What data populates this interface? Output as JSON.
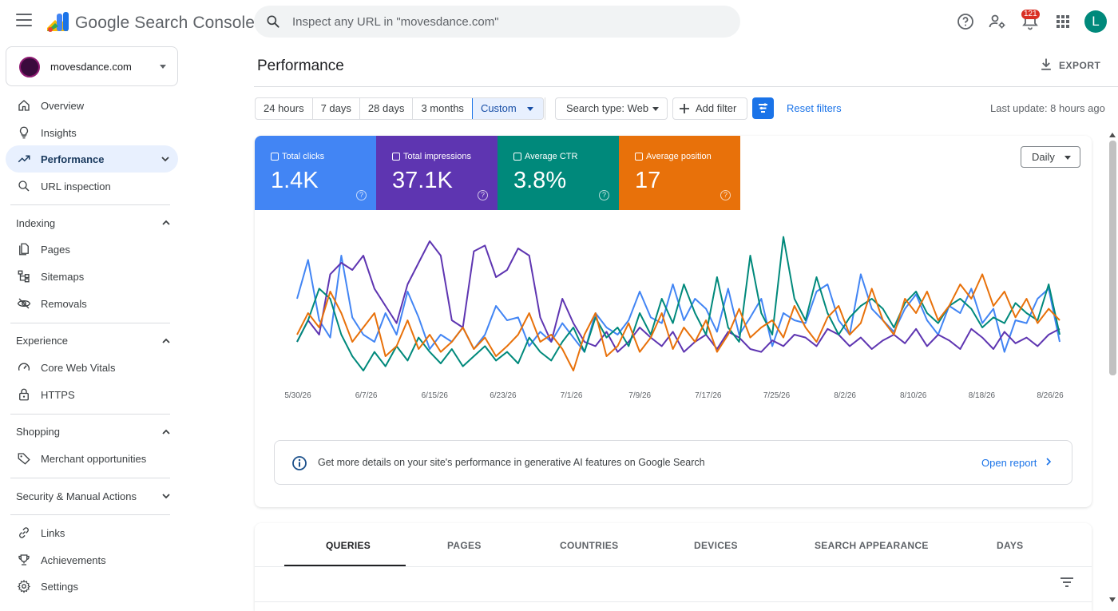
{
  "app": {
    "title": "Google Search Console"
  },
  "search": {
    "placeholder": "Inspect any URL in \"movesdance.com\""
  },
  "header": {
    "notifications_count": "121",
    "avatar_letter": "L"
  },
  "property": {
    "name": "movesdance.com"
  },
  "sidebar": {
    "items": [
      {
        "label": "Overview",
        "icon": "home-icon"
      },
      {
        "label": "Insights",
        "icon": "lightbulb-icon"
      },
      {
        "label": "Performance",
        "icon": "trending-up-icon",
        "active": true
      },
      {
        "label": "URL inspection",
        "icon": "search-icon"
      }
    ],
    "sections": {
      "indexing": {
        "title": "Indexing",
        "items": [
          {
            "label": "Pages"
          },
          {
            "label": "Sitemaps"
          },
          {
            "label": "Removals"
          }
        ]
      },
      "experience": {
        "title": "Experience",
        "items": [
          {
            "label": "Core Web Vitals"
          },
          {
            "label": "HTTPS"
          }
        ]
      },
      "shopping": {
        "title": "Shopping",
        "items": [
          {
            "label": "Merchant opportunities"
          }
        ]
      },
      "security": {
        "title": "Security & Manual Actions"
      },
      "other": {
        "items": [
          {
            "label": "Links"
          },
          {
            "label": "Achievements"
          },
          {
            "label": "Settings"
          }
        ]
      }
    }
  },
  "main": {
    "title": "Performance",
    "export_label": "EXPORT"
  },
  "toolbar": {
    "ranges": [
      "24 hours",
      "7 days",
      "28 days",
      "3 months",
      "Custom"
    ],
    "selected_range": "Custom",
    "search_type": "Search type: Web",
    "add_filter": "Add filter",
    "reset_filters": "Reset filters",
    "last_update": "Last update: 8 hours ago"
  },
  "metrics": [
    {
      "label": "Total clicks",
      "value": "1.4K",
      "color": "#4285f4"
    },
    {
      "label": "Total impressions",
      "value": "37.1K",
      "color": "#5e35b1"
    },
    {
      "label": "Average CTR",
      "value": "3.8%",
      "color": "#00897b"
    },
    {
      "label": "Average position",
      "value": "17",
      "color": "#e8710a"
    }
  ],
  "granularity": "Daily",
  "chart_data": {
    "type": "line",
    "x_ticks": [
      "5/30/26",
      "6/7/26",
      "6/15/26",
      "6/23/26",
      "7/1/26",
      "7/9/26",
      "7/17/26",
      "7/25/26",
      "8/2/26",
      "8/10/26",
      "8/18/26",
      "8/26/26"
    ],
    "y_axis_visible": false,
    "grid": false,
    "series": [
      {
        "name": "Total clicks",
        "color": "#4285f4",
        "values": [
          0.55,
          0.82,
          0.4,
          0.28,
          0.85,
          0.42,
          0.3,
          0.25,
          0.45,
          0.3,
          0.6,
          0.42,
          0.2,
          0.3,
          0.25,
          0.35,
          0.2,
          0.3,
          0.5,
          0.4,
          0.42,
          0.22,
          0.32,
          0.25,
          0.38,
          0.28,
          0.18,
          0.45,
          0.35,
          0.3,
          0.4,
          0.6,
          0.42,
          0.38,
          0.65,
          0.4,
          0.55,
          0.48,
          0.32,
          0.62,
          0.3,
          0.42,
          0.55,
          0.22,
          0.45,
          0.4,
          0.38,
          0.6,
          0.65,
          0.4,
          0.3,
          0.72,
          0.48,
          0.4,
          0.32,
          0.48,
          0.58,
          0.4,
          0.3,
          0.5,
          0.45,
          0.62,
          0.38,
          0.48,
          0.18,
          0.4,
          0.38,
          0.55,
          0.62,
          0.25
        ]
      },
      {
        "name": "Total impressions",
        "color": "#5e35b1",
        "values": [
          0.25,
          0.4,
          0.3,
          0.72,
          0.8,
          0.75,
          0.85,
          0.62,
          0.5,
          0.38,
          0.65,
          0.8,
          0.95,
          0.85,
          0.4,
          0.35,
          0.88,
          0.92,
          0.7,
          0.75,
          0.9,
          0.85,
          0.42,
          0.25,
          0.55,
          0.38,
          0.25,
          0.22,
          0.32,
          0.18,
          0.25,
          0.35,
          0.28,
          0.22,
          0.32,
          0.18,
          0.25,
          0.3,
          0.2,
          0.32,
          0.28,
          0.2,
          0.18,
          0.26,
          0.22,
          0.3,
          0.28,
          0.22,
          0.34,
          0.3,
          0.22,
          0.28,
          0.2,
          0.26,
          0.3,
          0.24,
          0.34,
          0.22,
          0.3,
          0.26,
          0.2,
          0.34,
          0.28,
          0.2,
          0.32,
          0.24,
          0.28,
          0.22,
          0.3,
          0.34
        ]
      },
      {
        "name": "Average CTR",
        "color": "#00897b",
        "values": [
          0.25,
          0.4,
          0.62,
          0.55,
          0.3,
          0.15,
          0.05,
          0.18,
          0.08,
          0.22,
          0.12,
          0.28,
          0.18,
          0.1,
          0.2,
          0.08,
          0.15,
          0.22,
          0.12,
          0.18,
          0.1,
          0.28,
          0.18,
          0.12,
          0.25,
          0.35,
          0.18,
          0.42,
          0.28,
          0.35,
          0.22,
          0.45,
          0.3,
          0.55,
          0.38,
          0.65,
          0.45,
          0.3,
          0.7,
          0.35,
          0.25,
          0.85,
          0.45,
          0.3,
          0.98,
          0.55,
          0.4,
          0.7,
          0.45,
          0.3,
          0.42,
          0.5,
          0.55,
          0.48,
          0.35,
          0.52,
          0.6,
          0.45,
          0.38,
          0.5,
          0.55,
          0.48,
          0.35,
          0.42,
          0.38,
          0.52,
          0.45,
          0.4,
          0.65,
          0.3
        ]
      },
      {
        "name": "Average position",
        "color": "#e8710a",
        "values": [
          0.3,
          0.45,
          0.35,
          0.6,
          0.45,
          0.25,
          0.35,
          0.45,
          0.15,
          0.22,
          0.4,
          0.2,
          0.3,
          0.18,
          0.25,
          0.35,
          0.2,
          0.28,
          0.15,
          0.22,
          0.3,
          0.45,
          0.25,
          0.3,
          0.2,
          0.05,
          0.3,
          0.45,
          0.15,
          0.22,
          0.38,
          0.18,
          0.28,
          0.45,
          0.2,
          0.35,
          0.25,
          0.4,
          0.18,
          0.3,
          0.48,
          0.28,
          0.35,
          0.4,
          0.28,
          0.5,
          0.35,
          0.25,
          0.42,
          0.5,
          0.3,
          0.38,
          0.62,
          0.4,
          0.3,
          0.55,
          0.45,
          0.6,
          0.4,
          0.5,
          0.65,
          0.55,
          0.72,
          0.5,
          0.6,
          0.42,
          0.55,
          0.38,
          0.48,
          0.4
        ]
      }
    ]
  },
  "banner": {
    "text": "Get more details on your site's performance in generative AI features on Google Search",
    "link": "Open report"
  },
  "tabs": [
    "QUERIES",
    "PAGES",
    "COUNTRIES",
    "DEVICES",
    "SEARCH APPEARANCE",
    "DAYS"
  ]
}
